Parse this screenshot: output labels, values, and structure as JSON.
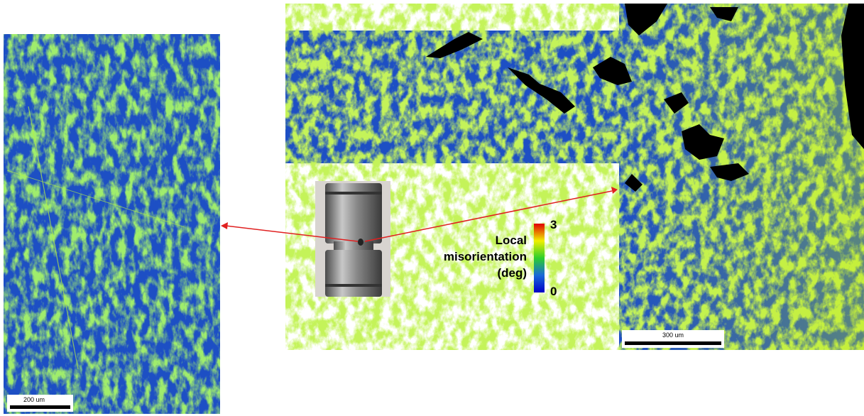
{
  "left_map": {
    "scale_bar": "200 um"
  },
  "right_map": {
    "scale_bar": "300 um"
  },
  "colorbar": {
    "label": [
      "Local",
      "misorientation",
      "(deg)"
    ],
    "max": "3",
    "min": "0"
  }
}
